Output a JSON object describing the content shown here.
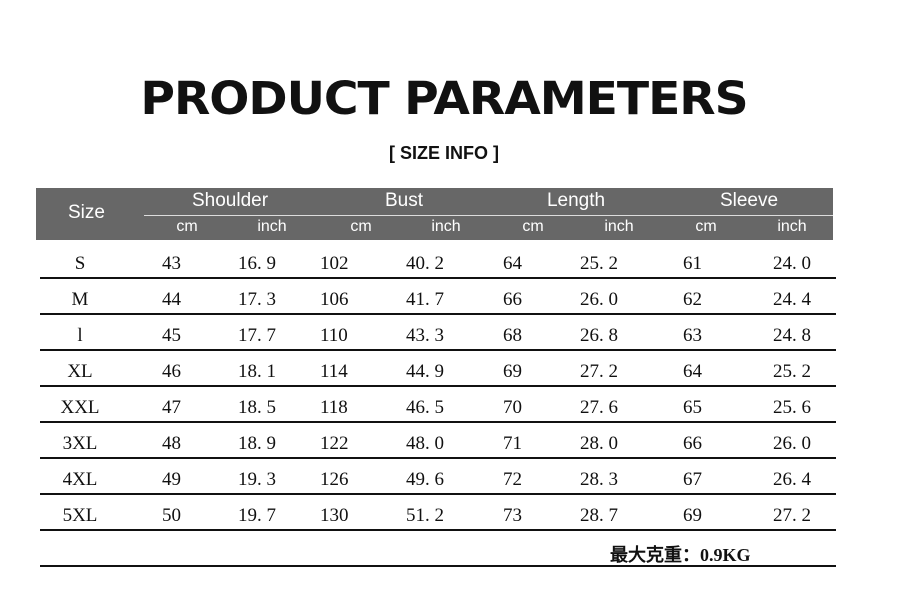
{
  "title": "PRODUCT PARAMETERS",
  "subtitle": "[ SIZE  INFO ]",
  "header": {
    "size": "Size",
    "groups": [
      "Shoulder",
      "Bust",
      "Length",
      "Sleeve"
    ],
    "units": [
      "cm",
      "inch",
      "cm",
      "inch",
      "cm",
      "inch",
      "cm",
      "inch"
    ]
  },
  "rows": [
    [
      "S",
      "43",
      "16. 9",
      "102",
      "40. 2",
      "64",
      "25. 2",
      "61",
      "24. 0"
    ],
    [
      "M",
      "44",
      "17. 3",
      "106",
      "41. 7",
      "66",
      "26. 0",
      "62",
      "24. 4"
    ],
    [
      "l",
      "45",
      "17. 7",
      "110",
      "43. 3",
      "68",
      "26. 8",
      "63",
      "24. 8"
    ],
    [
      "XL",
      "46",
      "18. 1",
      "114",
      "44. 9",
      "69",
      "27. 2",
      "64",
      "25. 2"
    ],
    [
      "XXL",
      "47",
      "18. 5",
      "118",
      "46. 5",
      "70",
      "27. 6",
      "65",
      "25. 6"
    ],
    [
      "3XL",
      "48",
      "18. 9",
      "122",
      "48. 0",
      "71",
      "28. 0",
      "66",
      "26. 0"
    ],
    [
      "4XL",
      "49",
      "19. 3",
      "126",
      "49. 6",
      "72",
      "28. 3",
      "67",
      "26. 4"
    ],
    [
      "5XL",
      "50",
      "19. 7",
      "130",
      "51. 2",
      "73",
      "28. 7",
      "69",
      "27. 2"
    ]
  ],
  "note": "最大克重：0.9KG",
  "colors": {
    "header_bg": "#676767",
    "header_text": "#ffffff",
    "rule": "#111111"
  }
}
